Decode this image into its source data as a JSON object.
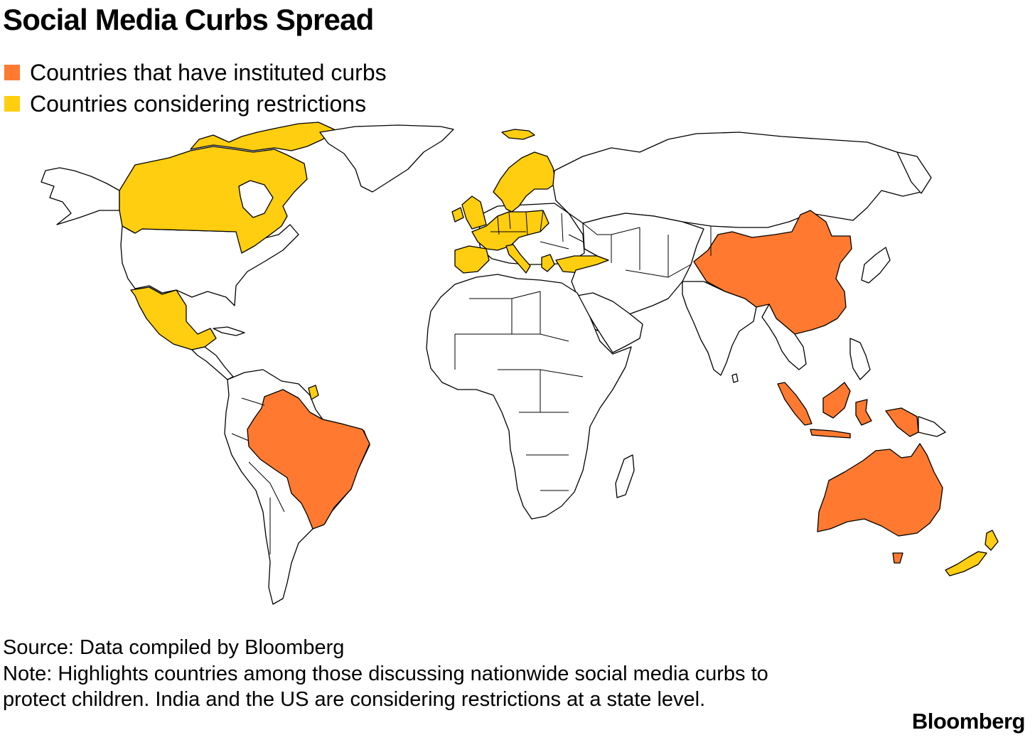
{
  "title": "Social Media Curbs Spread",
  "legend": [
    {
      "label": "Countries that have instituted curbs",
      "color": "#ff7a30",
      "status": "instituted"
    },
    {
      "label": "Countries considering restrictions",
      "color": "#ffce10",
      "status": "considering"
    }
  ],
  "colors": {
    "instituted": "#ff7a30",
    "considering": "#ffce10",
    "other": "#ffffff",
    "outline": "#000000"
  },
  "map": {
    "countries_instituted": [
      "China",
      "Brazil",
      "Indonesia",
      "Australia"
    ],
    "countries_considering": [
      "Canada",
      "Mexico",
      "United Kingdom",
      "Ireland",
      "Norway",
      "Sweden",
      "Finland",
      "Denmark",
      "Iceland",
      "France",
      "Spain",
      "Portugal",
      "Germany",
      "Netherlands",
      "Belgium",
      "Poland",
      "Czechia",
      "Austria",
      "Italy",
      "Greece",
      "Turkey",
      "New Zealand",
      "French Guiana"
    ]
  },
  "source": "Source: Data compiled by Bloomberg",
  "note": "Note: Highlights countries among those discussing nationwide social media curbs to protect children. India and the US are considering restrictions at a state level.",
  "brand": "Bloomberg"
}
